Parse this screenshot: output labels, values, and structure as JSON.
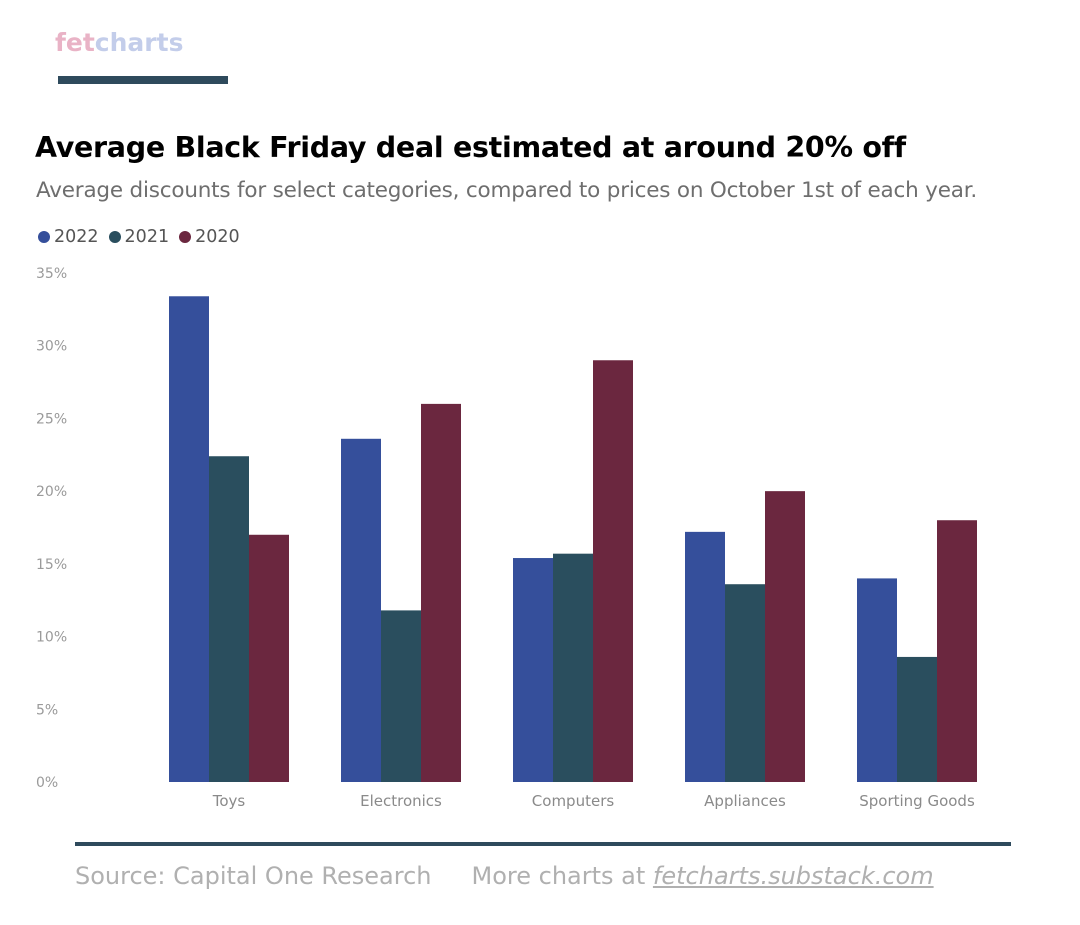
{
  "brand": {
    "logo_part_a": "fet",
    "logo_part_b": "charts",
    "bar_color": "#2e4a5c"
  },
  "footer": {
    "source": "Source: Capital One Research",
    "more_prefix": "More charts at ",
    "link": "fetcharts.substack.com",
    "rule_color": "#2e4a5c"
  },
  "chart_data": {
    "type": "bar",
    "title": "Average Black Friday deal estimated at around 20% off",
    "subtitle": "Average discounts for select categories, compared to prices on October 1st of each year.",
    "xlabel": "",
    "ylabel": "",
    "categories": [
      "Toys",
      "Electronics",
      "Computers",
      "Appliances",
      "Sporting Goods"
    ],
    "series": [
      {
        "name": "2022",
        "color": "#354f9b",
        "values": [
          33.4,
          23.6,
          15.4,
          17.2,
          14.0
        ]
      },
      {
        "name": "2021",
        "color": "#2a4e5e",
        "values": [
          22.4,
          11.8,
          15.7,
          13.6,
          8.6
        ]
      },
      {
        "name": "2020",
        "color": "#6b273f",
        "values": [
          17.0,
          26.0,
          29.0,
          20.0,
          18.0
        ]
      }
    ],
    "ylim": [
      0,
      35
    ],
    "yticks": [
      0,
      5,
      10,
      15,
      20,
      25,
      30,
      35
    ],
    "ytick_labels": [
      "0%",
      "5%",
      "10%",
      "15%",
      "20%",
      "25%",
      "30%",
      "35%"
    ],
    "grid": false,
    "legend_position": "top-left"
  }
}
